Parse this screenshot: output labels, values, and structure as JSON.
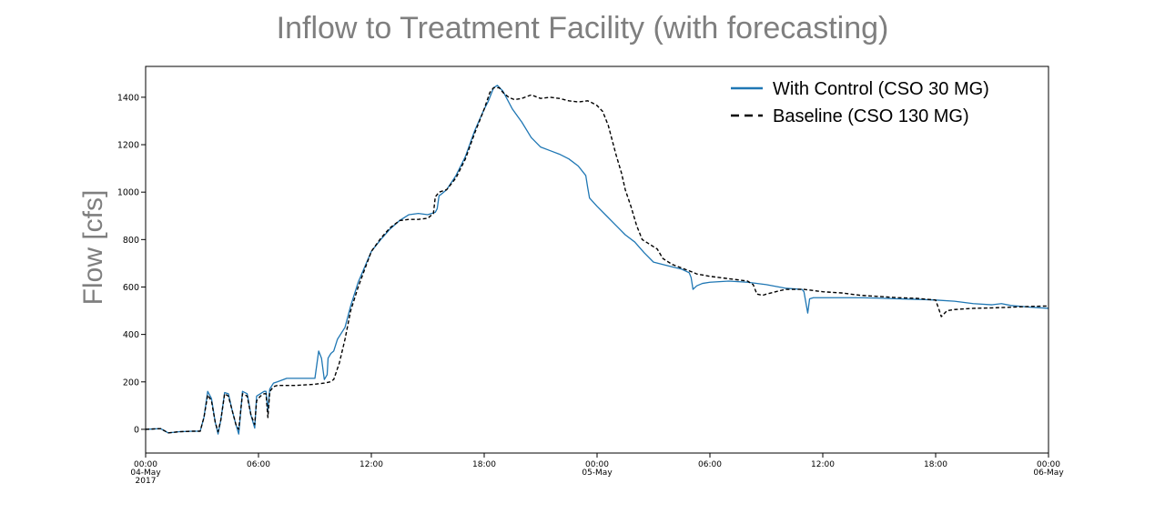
{
  "chart_data": {
    "type": "line",
    "title": "Inflow to Treatment Facility (with forecasting)",
    "xlabel": "",
    "ylabel": "Flow [cfs]",
    "x_unit": "hours since 04-May-2017 00:00",
    "xlim": [
      0,
      48
    ],
    "ylim": [
      -100,
      1530
    ],
    "y_ticks": [
      0,
      200,
      400,
      600,
      800,
      1000,
      1200,
      1400
    ],
    "x_ticks": [
      {
        "x": 0,
        "label": "00:00",
        "sub1": "04-May",
        "sub2": "2017"
      },
      {
        "x": 6,
        "label": "06:00",
        "sub1": "",
        "sub2": ""
      },
      {
        "x": 12,
        "label": "12:00",
        "sub1": "",
        "sub2": ""
      },
      {
        "x": 18,
        "label": "18:00",
        "sub1": "",
        "sub2": ""
      },
      {
        "x": 24,
        "label": "00:00",
        "sub1": "05-May",
        "sub2": ""
      },
      {
        "x": 30,
        "label": "06:00",
        "sub1": "",
        "sub2": ""
      },
      {
        "x": 36,
        "label": "12:00",
        "sub1": "",
        "sub2": ""
      },
      {
        "x": 42,
        "label": "18:00",
        "sub1": "",
        "sub2": ""
      },
      {
        "x": 48,
        "label": "00:00",
        "sub1": "06-May",
        "sub2": ""
      }
    ],
    "legend_position": "top-right",
    "series": [
      {
        "name": "With Control (CSO 30 MG)",
        "color": "#1f77b4",
        "style": "solid",
        "points": [
          [
            0,
            0
          ],
          [
            0.8,
            3
          ],
          [
            1.2,
            -15
          ],
          [
            1.8,
            -10
          ],
          [
            2.5,
            -8
          ],
          [
            2.9,
            -8
          ],
          [
            3.1,
            50
          ],
          [
            3.3,
            160
          ],
          [
            3.5,
            130
          ],
          [
            3.7,
            30
          ],
          [
            3.85,
            -20
          ],
          [
            4.0,
            40
          ],
          [
            4.2,
            155
          ],
          [
            4.4,
            150
          ],
          [
            4.6,
            80
          ],
          [
            4.8,
            20
          ],
          [
            4.95,
            -20
          ],
          [
            5.15,
            160
          ],
          [
            5.4,
            150
          ],
          [
            5.6,
            60
          ],
          [
            5.8,
            5
          ],
          [
            5.9,
            140
          ],
          [
            6.1,
            150
          ],
          [
            6.3,
            160
          ],
          [
            6.4,
            160
          ],
          [
            6.5,
            80
          ],
          [
            6.6,
            170
          ],
          [
            6.8,
            195
          ],
          [
            7.0,
            200
          ],
          [
            7.5,
            215
          ],
          [
            8.5,
            215
          ],
          [
            9.0,
            215
          ],
          [
            9.2,
            330
          ],
          [
            9.35,
            300
          ],
          [
            9.5,
            210
          ],
          [
            9.65,
            230
          ],
          [
            9.7,
            300
          ],
          [
            9.85,
            320
          ],
          [
            10.0,
            330
          ],
          [
            10.2,
            380
          ],
          [
            10.6,
            430
          ],
          [
            10.9,
            520
          ],
          [
            11.3,
            620
          ],
          [
            12.0,
            750
          ],
          [
            12.5,
            800
          ],
          [
            13.0,
            845
          ],
          [
            13.5,
            880
          ],
          [
            14.0,
            905
          ],
          [
            14.5,
            910
          ],
          [
            15.0,
            905
          ],
          [
            15.4,
            915
          ],
          [
            15.5,
            930
          ],
          [
            15.6,
            985
          ],
          [
            15.7,
            990
          ],
          [
            16.0,
            1010
          ],
          [
            16.5,
            1070
          ],
          [
            17.0,
            1150
          ],
          [
            17.5,
            1260
          ],
          [
            18.0,
            1350
          ],
          [
            18.2,
            1380
          ],
          [
            18.5,
            1440
          ],
          [
            18.7,
            1450
          ],
          [
            19.0,
            1425
          ],
          [
            19.5,
            1350
          ],
          [
            20.0,
            1295
          ],
          [
            20.5,
            1230
          ],
          [
            21.0,
            1190
          ],
          [
            21.5,
            1175
          ],
          [
            22.0,
            1160
          ],
          [
            22.5,
            1140
          ],
          [
            23.0,
            1110
          ],
          [
            23.4,
            1070
          ],
          [
            23.5,
            1020
          ],
          [
            23.6,
            975
          ],
          [
            24.0,
            940
          ],
          [
            24.5,
            900
          ],
          [
            25.0,
            860
          ],
          [
            25.5,
            820
          ],
          [
            26.0,
            790
          ],
          [
            26.5,
            745
          ],
          [
            27.0,
            705
          ],
          [
            27.5,
            695
          ],
          [
            28.0,
            685
          ],
          [
            28.5,
            675
          ],
          [
            28.9,
            660
          ],
          [
            29.0,
            640
          ],
          [
            29.1,
            590
          ],
          [
            29.3,
            605
          ],
          [
            29.6,
            615
          ],
          [
            30.0,
            620
          ],
          [
            31.0,
            625
          ],
          [
            32.0,
            620
          ],
          [
            33.0,
            610
          ],
          [
            34.0,
            595
          ],
          [
            34.9,
            590
          ],
          [
            35.0,
            580
          ],
          [
            35.2,
            490
          ],
          [
            35.3,
            550
          ],
          [
            35.5,
            555
          ],
          [
            36.0,
            555
          ],
          [
            37.0,
            555
          ],
          [
            38.0,
            555
          ],
          [
            39.0,
            553
          ],
          [
            40.0,
            550
          ],
          [
            41.0,
            548
          ],
          [
            42.0,
            545
          ],
          [
            43.0,
            540
          ],
          [
            44.0,
            530
          ],
          [
            45.0,
            525
          ],
          [
            45.5,
            530
          ],
          [
            46.0,
            522
          ],
          [
            47.0,
            515
          ],
          [
            48.0,
            510
          ]
        ]
      },
      {
        "name": "Baseline (CSO 130 MG)",
        "color": "#000000",
        "style": "dashed",
        "points": [
          [
            0,
            0
          ],
          [
            0.8,
            3
          ],
          [
            1.2,
            -15
          ],
          [
            1.8,
            -10
          ],
          [
            2.5,
            -8
          ],
          [
            2.9,
            -8
          ],
          [
            3.1,
            50
          ],
          [
            3.3,
            145
          ],
          [
            3.5,
            120
          ],
          [
            3.7,
            30
          ],
          [
            3.85,
            -10
          ],
          [
            4.0,
            40
          ],
          [
            4.2,
            150
          ],
          [
            4.4,
            140
          ],
          [
            4.6,
            80
          ],
          [
            4.8,
            20
          ],
          [
            4.95,
            0
          ],
          [
            5.15,
            150
          ],
          [
            5.4,
            140
          ],
          [
            5.6,
            60
          ],
          [
            5.8,
            20
          ],
          [
            5.9,
            120
          ],
          [
            6.1,
            140
          ],
          [
            6.3,
            150
          ],
          [
            6.4,
            150
          ],
          [
            6.5,
            50
          ],
          [
            6.6,
            160
          ],
          [
            6.8,
            180
          ],
          [
            7.0,
            185
          ],
          [
            8.0,
            185
          ],
          [
            9.0,
            190
          ],
          [
            9.5,
            195
          ],
          [
            9.8,
            200
          ],
          [
            10.0,
            210
          ],
          [
            10.3,
            280
          ],
          [
            10.6,
            380
          ],
          [
            10.9,
            500
          ],
          [
            11.3,
            600
          ],
          [
            12.0,
            750
          ],
          [
            12.5,
            805
          ],
          [
            13.0,
            850
          ],
          [
            13.5,
            880
          ],
          [
            14.0,
            885
          ],
          [
            14.5,
            885
          ],
          [
            15.0,
            890
          ],
          [
            15.3,
            910
          ],
          [
            15.4,
            980
          ],
          [
            15.6,
            1000
          ],
          [
            16.0,
            1010
          ],
          [
            16.5,
            1060
          ],
          [
            17.0,
            1140
          ],
          [
            17.5,
            1250
          ],
          [
            18.0,
            1350
          ],
          [
            18.3,
            1420
          ],
          [
            18.5,
            1440
          ],
          [
            18.8,
            1440
          ],
          [
            19.0,
            1420
          ],
          [
            19.3,
            1400
          ],
          [
            19.6,
            1390
          ],
          [
            20.0,
            1395
          ],
          [
            20.5,
            1410
          ],
          [
            21.0,
            1395
          ],
          [
            21.5,
            1400
          ],
          [
            22.0,
            1395
          ],
          [
            22.5,
            1385
          ],
          [
            23.0,
            1380
          ],
          [
            23.5,
            1385
          ],
          [
            23.7,
            1378
          ],
          [
            24.0,
            1365
          ],
          [
            24.3,
            1340
          ],
          [
            24.6,
            1280
          ],
          [
            25.0,
            1160
          ],
          [
            25.3,
            1080
          ],
          [
            25.5,
            1010
          ],
          [
            25.8,
            940
          ],
          [
            26.1,
            860
          ],
          [
            26.4,
            800
          ],
          [
            26.8,
            780
          ],
          [
            27.2,
            760
          ],
          [
            27.5,
            720
          ],
          [
            28.0,
            695
          ],
          [
            28.5,
            680
          ],
          [
            29.0,
            665
          ],
          [
            29.3,
            655
          ],
          [
            30.0,
            645
          ],
          [
            31.0,
            635
          ],
          [
            32.0,
            625
          ],
          [
            32.3,
            610
          ],
          [
            32.5,
            570
          ],
          [
            32.8,
            565
          ],
          [
            33.0,
            570
          ],
          [
            34.0,
            590
          ],
          [
            35.0,
            590
          ],
          [
            36.0,
            580
          ],
          [
            37.0,
            575
          ],
          [
            38.0,
            565
          ],
          [
            39.0,
            560
          ],
          [
            40.0,
            555
          ],
          [
            41.0,
            552
          ],
          [
            42.0,
            545
          ],
          [
            42.2,
            500
          ],
          [
            42.3,
            475
          ],
          [
            42.6,
            500
          ],
          [
            43.0,
            505
          ],
          [
            44.0,
            510
          ],
          [
            45.0,
            512
          ],
          [
            46.0,
            515
          ],
          [
            47.0,
            518
          ],
          [
            48.0,
            520
          ]
        ]
      }
    ]
  }
}
